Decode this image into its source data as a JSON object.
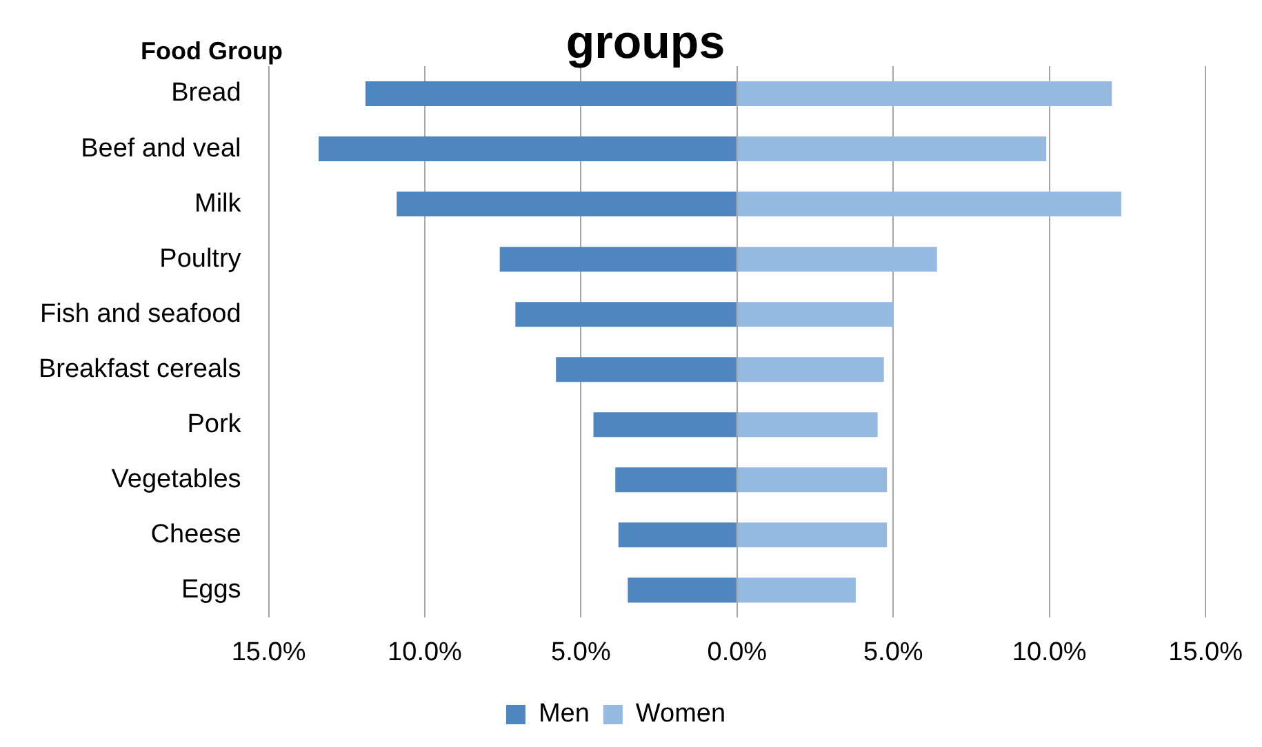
{
  "chart_data": {
    "type": "bar",
    "orientation": "horizontal",
    "stacked": true,
    "title": "groups",
    "ylabel": "Food Group",
    "categories": [
      "Bread",
      "Beef and veal",
      "Milk",
      "Poultry",
      "Fish and seafood",
      "Breakfast cereals",
      "Pork",
      "Vegetables",
      "Cheese",
      "Eggs"
    ],
    "series": [
      {
        "name": "Men",
        "color": "#4f86c0",
        "values": [
          -11.9,
          -13.4,
          -10.9,
          -7.6,
          -7.1,
          -5.8,
          -4.6,
          -3.9,
          -3.8,
          -3.5
        ]
      },
      {
        "name": "Women",
        "color": "#95b9e1",
        "values": [
          12.0,
          9.9,
          12.3,
          6.4,
          5.0,
          4.7,
          4.5,
          4.8,
          4.8,
          3.8
        ]
      }
    ],
    "xlim": [
      -15,
      15
    ],
    "xticks": [
      {
        "value": -15,
        "label": "15.0%"
      },
      {
        "value": -10,
        "label": "10.0%"
      },
      {
        "value": -5,
        "label": "5.0%"
      },
      {
        "value": 0,
        "label": "0.0%"
      },
      {
        "value": 5,
        "label": "5.0%"
      },
      {
        "value": 10,
        "label": "10.0%"
      },
      {
        "value": 15,
        "label": "15.0%"
      }
    ],
    "grid": "x",
    "legend": "bottom"
  }
}
